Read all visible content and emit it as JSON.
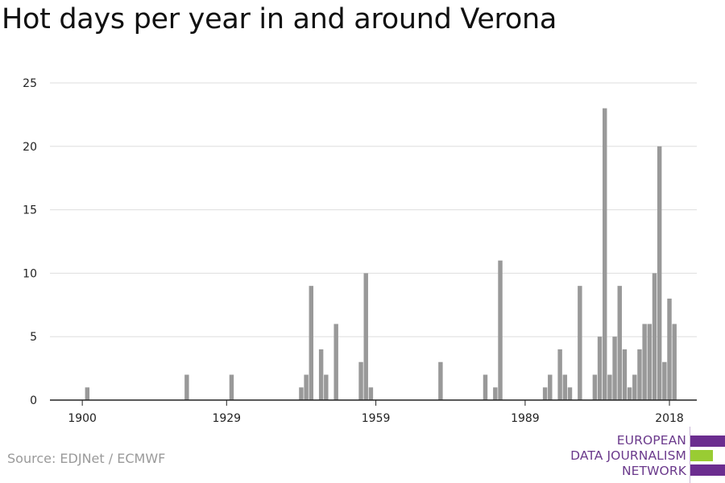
{
  "chart_data": {
    "type": "bar",
    "title": "Hot days per year in and around Verona",
    "xlabel": "",
    "ylabel": "",
    "xlim": [
      1893.5,
      2023.5
    ],
    "ylim": [
      0,
      25
    ],
    "yticks": [
      0,
      5,
      10,
      15,
      20,
      25
    ],
    "xticks": [
      1900,
      1929,
      1959,
      1989,
      2018
    ],
    "grid": true,
    "bar_color": "#999999",
    "series": [
      {
        "x": [
          1901,
          1921,
          1930,
          1944,
          1945,
          1946,
          1948,
          1949,
          1951,
          1956,
          1957,
          1958,
          1972,
          1981,
          1983,
          1984,
          1993,
          1994,
          1996,
          1997,
          1998,
          2000,
          2003,
          2004,
          2005,
          2006,
          2007,
          2008,
          2009,
          2010,
          2011,
          2012,
          2013,
          2014,
          2015,
          2016,
          2017,
          2018
        ],
        "values": [
          1,
          2,
          2,
          1,
          2,
          9,
          4,
          2,
          6,
          3,
          10,
          1,
          3,
          2,
          1,
          11,
          1,
          2,
          4,
          2,
          1,
          9,
          2,
          5,
          23,
          2,
          5,
          9,
          4,
          1,
          2,
          4,
          6,
          6,
          10,
          20,
          3,
          8
        ]
      }
    ],
    "extra_bars": [
      {
        "x": 2019,
        "value": 6
      }
    ]
  },
  "source": "Source: EDJNet / ECMWF",
  "logo": {
    "line1": "EUROPEAN",
    "line2": "DATA JOURNALISM",
    "line3": "NETWORK",
    "purple": "#6b2d8f",
    "green": "#99cc33"
  }
}
